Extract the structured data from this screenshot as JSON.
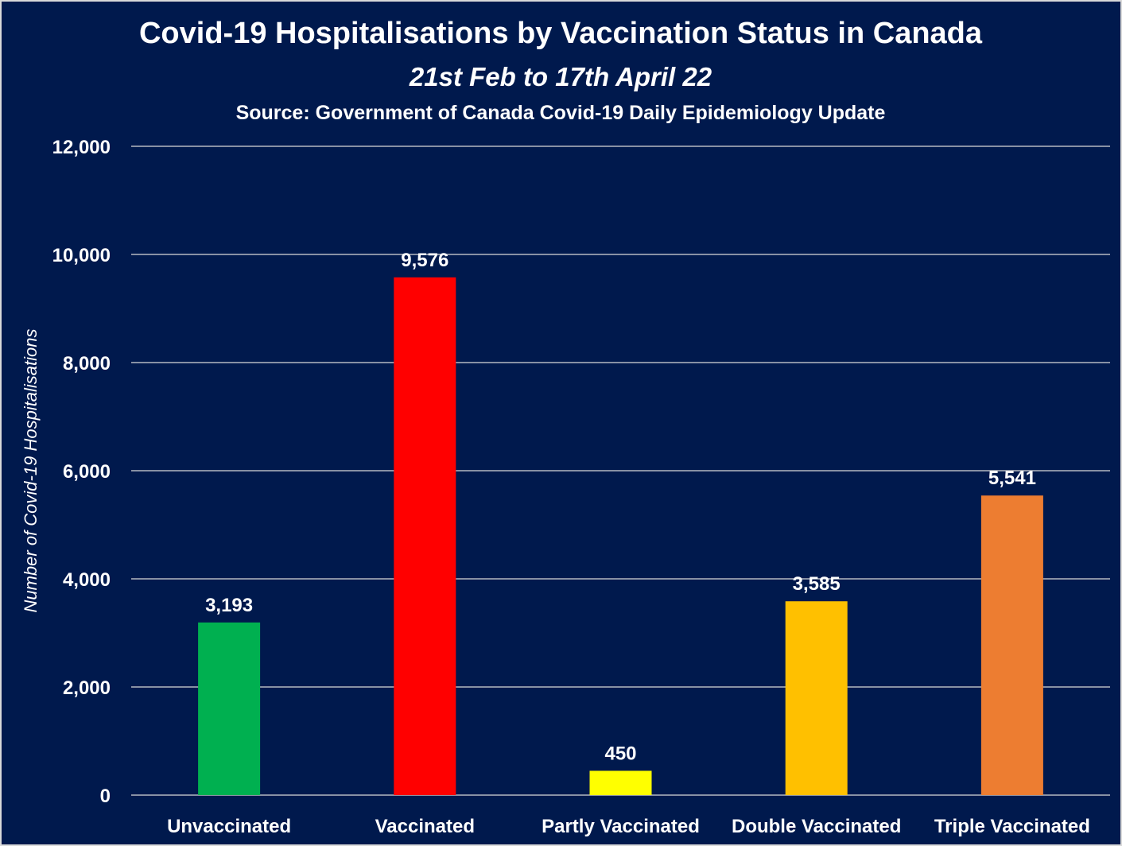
{
  "chart_data": {
    "type": "bar",
    "title": "Covid-19 Hospitalisations by Vaccination Status in Canada",
    "subtitle": "21st Feb to 17th April 22",
    "source": "Source: Government of Canada Covid-19 Daily Epidemiology Update",
    "xlabel": "",
    "ylabel": "Number of Covid-19 Hospitalisations",
    "ylim": [
      0,
      12000
    ],
    "yticks": [
      0,
      2000,
      4000,
      6000,
      8000,
      10000,
      12000
    ],
    "ytick_labels": [
      "0",
      "2,000",
      "4,000",
      "6,000",
      "8,000",
      "10,000",
      "12,000"
    ],
    "grid": true,
    "categories": [
      "Unvaccinated",
      "Vaccinated",
      "Partly Vaccinated",
      "Double Vaccinated",
      "Triple Vaccinated"
    ],
    "values": [
      3193,
      9576,
      450,
      3585,
      5541
    ],
    "value_labels": [
      "3,193",
      "9,576",
      "450",
      "3,585",
      "5,541"
    ],
    "colors": [
      "#00b050",
      "#ff0000",
      "#ffff00",
      "#ffc000",
      "#ed7d31"
    ]
  },
  "theme": {
    "background": "#00194d",
    "text": "#ffffff",
    "grid": "#d9d9d9"
  }
}
